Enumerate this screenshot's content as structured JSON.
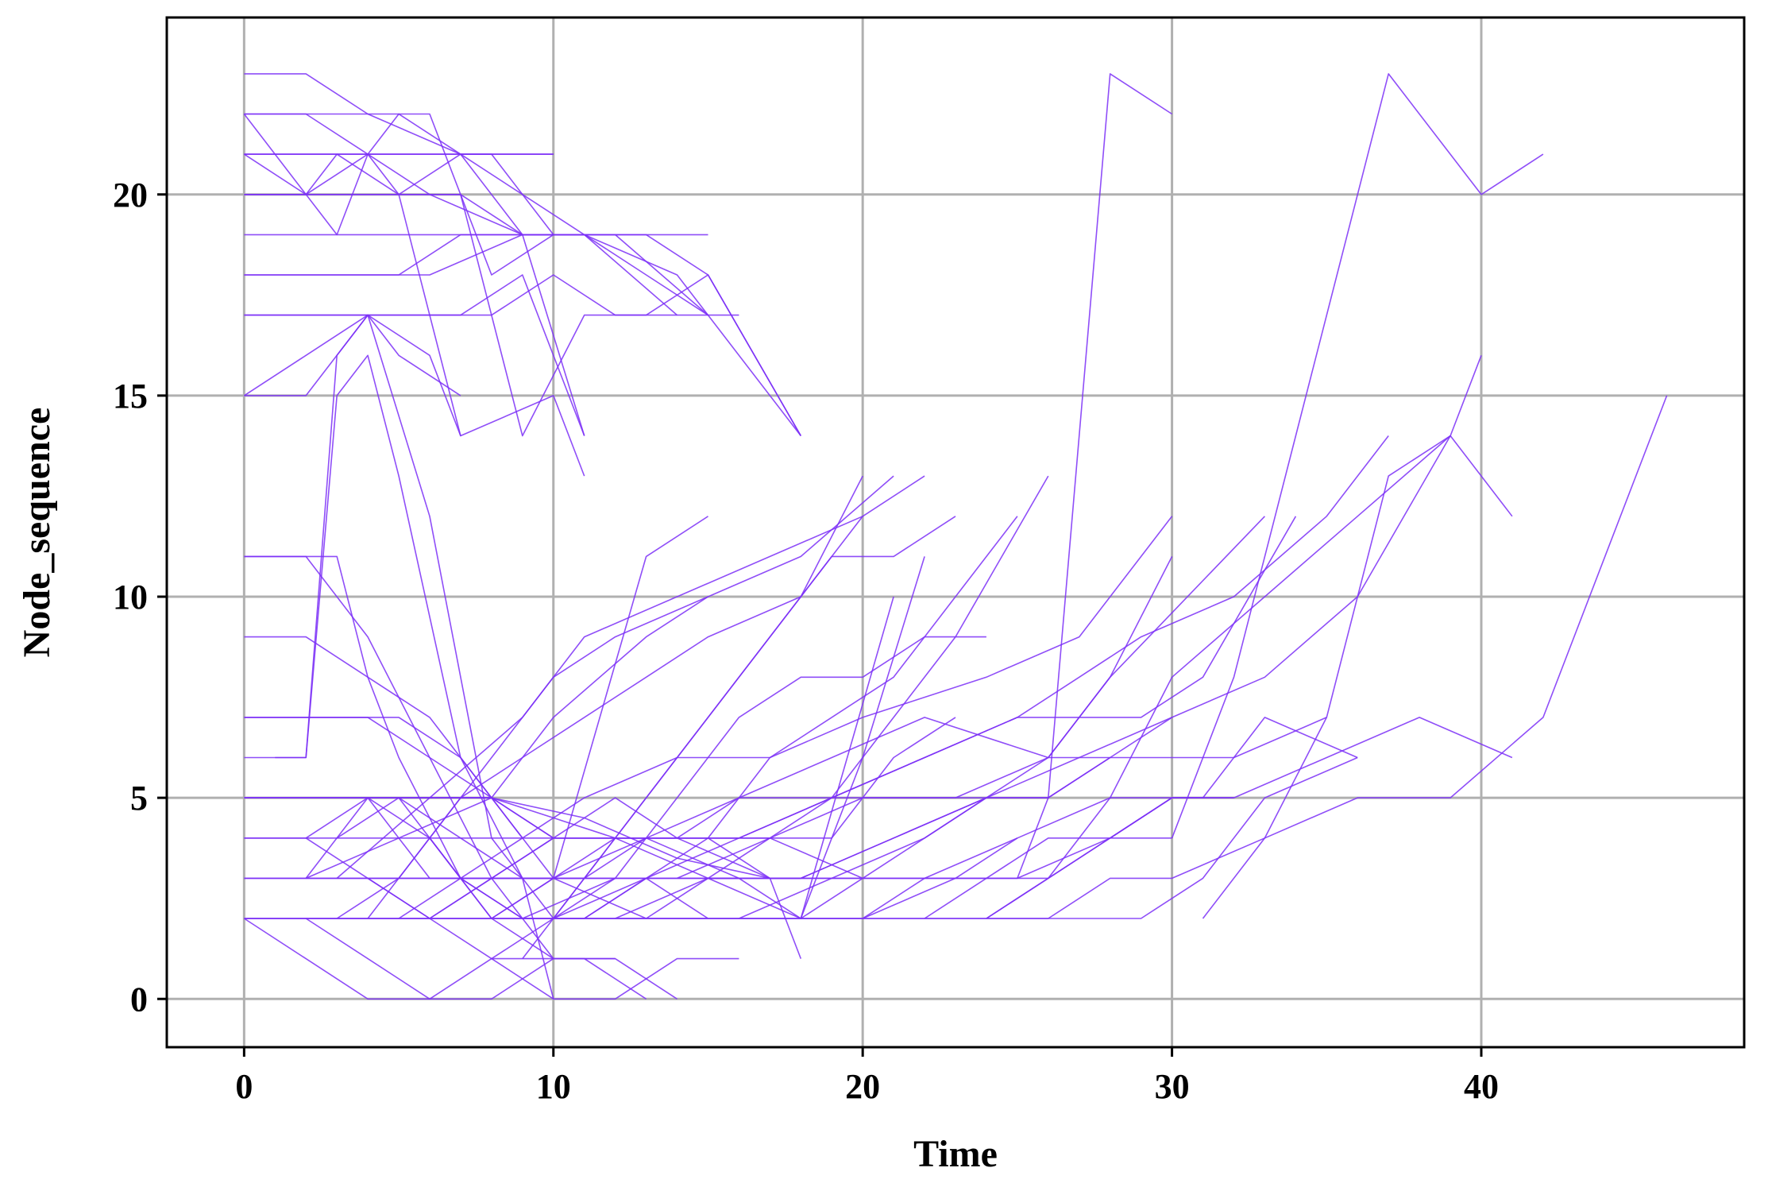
{
  "chart_data": {
    "type": "line",
    "title": "",
    "xlabel": "Time",
    "ylabel": "Node_sequence",
    "xlim": [
      -2.5,
      48.5
    ],
    "ylim": [
      -1.2,
      24.4
    ],
    "xticks": [
      0,
      10,
      20,
      30,
      40
    ],
    "yticks": [
      0,
      5,
      10,
      15,
      20
    ],
    "grid": true,
    "legend": "none",
    "line_color": "#7b2ff7",
    "series": [
      {
        "x": [
          0,
          2,
          4,
          6,
          9,
          11,
          14
        ],
        "y": [
          20,
          20,
          21,
          20,
          19,
          19,
          17
        ]
      },
      {
        "x": [
          0,
          3,
          5,
          8,
          10,
          12,
          15
        ],
        "y": [
          21,
          21,
          21,
          21,
          19,
          19,
          17
        ]
      },
      {
        "x": [
          0,
          2,
          5,
          7,
          9,
          11
        ],
        "y": [
          20,
          20,
          20,
          20,
          19,
          14
        ]
      },
      {
        "x": [
          0,
          2,
          4,
          6,
          8,
          10
        ],
        "y": [
          21,
          21,
          21,
          21,
          21,
          21
        ]
      },
      {
        "x": [
          0,
          2,
          6,
          8,
          10
        ],
        "y": [
          19,
          19,
          19,
          19,
          19
        ]
      },
      {
        "x": [
          0,
          3,
          6,
          9,
          10
        ],
        "y": [
          18,
          18,
          18,
          19,
          19
        ]
      },
      {
        "x": [
          0,
          3,
          5,
          7,
          9,
          10
        ],
        "y": [
          20,
          20,
          20,
          21,
          21,
          21
        ]
      },
      {
        "x": [
          0,
          2,
          4,
          7,
          9,
          11
        ],
        "y": [
          17,
          17,
          17,
          17,
          18,
          14
        ]
      },
      {
        "x": [
          0,
          2,
          5,
          7,
          9,
          11,
          13,
          15
        ],
        "y": [
          18,
          18,
          18,
          19,
          19,
          19,
          18,
          17
        ]
      },
      {
        "x": [
          0,
          2,
          5,
          8,
          10,
          12,
          14,
          16
        ],
        "y": [
          17,
          17,
          17,
          17,
          18,
          17,
          17,
          17
        ]
      },
      {
        "x": [
          0,
          2,
          4,
          5,
          7,
          11,
          14,
          18
        ],
        "y": [
          22,
          22,
          21,
          22,
          21,
          19,
          18,
          14
        ]
      },
      {
        "x": [
          0,
          2,
          4,
          7,
          9,
          11,
          13,
          15,
          18
        ],
        "y": [
          23,
          23,
          22,
          21,
          19,
          19,
          19,
          18,
          14
        ]
      },
      {
        "x": [
          0,
          2,
          4,
          6,
          7,
          8,
          10,
          12,
          15
        ],
        "y": [
          22,
          22,
          22,
          22,
          20,
          18,
          19,
          19,
          19
        ]
      },
      {
        "x": [
          0,
          2,
          3,
          5,
          7,
          9,
          11,
          13,
          15,
          18
        ],
        "y": [
          21,
          20,
          21,
          20,
          20,
          14,
          17,
          17,
          18,
          14
        ]
      },
      {
        "x": [
          0,
          2,
          4,
          5,
          7
        ],
        "y": [
          15,
          15,
          17,
          16,
          15
        ]
      },
      {
        "x": [
          0,
          2,
          4,
          6,
          7
        ],
        "y": [
          15,
          16,
          17,
          16,
          14
        ]
      },
      {
        "x": [
          0,
          1,
          3,
          4,
          5,
          7,
          10,
          11
        ],
        "y": [
          22,
          21,
          19,
          21,
          20,
          14,
          15,
          13
        ]
      },
      {
        "x": [
          1,
          2,
          3,
          4,
          6,
          8,
          10
        ],
        "y": [
          6,
          6,
          16,
          17,
          12,
          4,
          2
        ]
      },
      {
        "x": [
          0,
          2,
          3,
          4,
          5,
          7,
          9,
          10
        ],
        "y": [
          6,
          6,
          15,
          16,
          13,
          6,
          3,
          0
        ]
      },
      {
        "x": [
          0,
          3,
          4,
          5,
          7,
          9,
          12
        ],
        "y": [
          11,
          11,
          8,
          6,
          3,
          2,
          3
        ]
      },
      {
        "x": [
          0,
          2,
          4,
          6,
          8,
          10
        ],
        "y": [
          11,
          11,
          9,
          6,
          3,
          1
        ]
      },
      {
        "x": [
          0,
          2,
          4,
          6,
          8,
          10
        ],
        "y": [
          9,
          9,
          8,
          7,
          5,
          3
        ]
      },
      {
        "x": [
          0,
          2,
          4,
          6,
          8,
          10
        ],
        "y": [
          7,
          7,
          7,
          6,
          5,
          4
        ]
      },
      {
        "x": [
          0,
          2,
          5,
          7,
          9
        ],
        "y": [
          7,
          7,
          7,
          6,
          4
        ]
      },
      {
        "x": [
          0,
          3,
          6,
          8,
          10,
          13,
          16,
          18,
          21
        ],
        "y": [
          5,
          5,
          5,
          5,
          4,
          4,
          3,
          2,
          10
        ]
      },
      {
        "x": [
          0,
          3,
          6,
          8,
          10,
          12,
          15,
          18,
          20,
          22
        ],
        "y": [
          5,
          5,
          5,
          5,
          4.5,
          4,
          3,
          2,
          6,
          11
        ]
      },
      {
        "x": [
          0,
          2,
          5,
          8,
          11,
          14,
          17,
          20,
          22,
          25
        ],
        "y": [
          5,
          5,
          5,
          5,
          4.5,
          3.5,
          3,
          3,
          3,
          4
        ]
      },
      {
        "x": [
          0,
          3,
          5,
          8,
          11,
          14,
          17,
          20
        ],
        "y": [
          4,
          4,
          4,
          4,
          4,
          4,
          4,
          3
        ]
      },
      {
        "x": [
          0,
          2,
          4,
          7,
          10,
          13,
          16
        ],
        "y": [
          3,
          3,
          3,
          3,
          3,
          3,
          3
        ]
      },
      {
        "x": [
          0,
          5,
          10,
          15,
          20,
          22,
          25,
          28,
          30
        ],
        "y": [
          3,
          3,
          3,
          3,
          3,
          3,
          3,
          4,
          5
        ]
      },
      {
        "x": [
          0,
          5,
          10,
          15,
          20,
          25,
          29,
          31,
          33,
          36
        ],
        "y": [
          2,
          2,
          2,
          2,
          2,
          2,
          2,
          3,
          5,
          6
        ]
      },
      {
        "x": [
          0,
          5,
          10,
          15,
          20,
          23,
          25,
          28,
          31,
          33,
          36
        ],
        "y": [
          2,
          2,
          2,
          2,
          2,
          3,
          4,
          5,
          5,
          7,
          6
        ]
      },
      {
        "x": [
          0,
          5,
          10,
          15,
          20,
          24,
          26,
          28,
          30,
          33,
          36,
          39,
          42,
          46
        ],
        "y": [
          2,
          2,
          2,
          2,
          2,
          2,
          2,
          3,
          3,
          4,
          5,
          5,
          7,
          15
        ]
      },
      {
        "x": [
          2,
          4,
          6,
          8,
          10,
          13,
          15
        ],
        "y": [
          3,
          5,
          4,
          2,
          3,
          11,
          12
        ]
      },
      {
        "x": [
          2,
          5,
          8,
          10,
          13,
          15
        ],
        "y": [
          3,
          4,
          5,
          7,
          9,
          10
        ]
      },
      {
        "x": [
          3,
          5,
          7,
          9,
          11,
          13,
          15,
          18,
          20
        ],
        "y": [
          2,
          3,
          5,
          6,
          7,
          8,
          9,
          10,
          13
        ]
      },
      {
        "x": [
          4,
          6,
          8,
          10,
          12,
          15,
          18,
          21
        ],
        "y": [
          2,
          4,
          6,
          8,
          9,
          10,
          11,
          13
        ]
      },
      {
        "x": [
          3,
          6,
          9,
          11,
          14,
          17,
          20,
          22
        ],
        "y": [
          3,
          5,
          7,
          9,
          10,
          11,
          12,
          13
        ]
      },
      {
        "x": [
          5,
          7,
          9,
          11,
          14,
          17,
          20,
          24,
          27,
          30
        ],
        "y": [
          2,
          3,
          4,
          5,
          6,
          6,
          7,
          8,
          9,
          12
        ]
      },
      {
        "x": [
          6,
          8,
          10,
          13,
          16,
          19,
          22,
          26,
          28,
          33
        ],
        "y": [
          2,
          3,
          4,
          4,
          5,
          6,
          7,
          6,
          8,
          12
        ]
      },
      {
        "x": [
          8,
          10,
          13,
          16,
          19,
          22,
          25,
          27,
          29,
          31,
          34
        ],
        "y": [
          2,
          3,
          4,
          4,
          5,
          6,
          7,
          7,
          7,
          8,
          12
        ]
      },
      {
        "x": [
          10,
          13,
          16,
          19,
          22,
          25,
          27,
          29,
          32,
          35,
          37
        ],
        "y": [
          2,
          3,
          4,
          5,
          6,
          7,
          8,
          9,
          10,
          12,
          14
        ]
      },
      {
        "x": [
          12,
          15,
          18,
          21,
          24,
          27,
          30,
          33,
          36,
          39,
          40
        ],
        "y": [
          2,
          3,
          3,
          4,
          5,
          6,
          7,
          8,
          10,
          14,
          16
        ]
      },
      {
        "x": [
          14,
          17,
          20,
          23,
          26,
          28,
          30
        ],
        "y": [
          3,
          4,
          5,
          5,
          6,
          8,
          11
        ]
      },
      {
        "x": [
          15,
          18,
          21,
          24,
          26,
          28,
          30
        ],
        "y": [
          3,
          3,
          4,
          5,
          6,
          6,
          7
        ]
      },
      {
        "x": [
          16,
          19,
          22,
          24,
          26,
          28
        ],
        "y": [
          2,
          3,
          4,
          5,
          5,
          6
        ]
      },
      {
        "x": [
          18,
          20,
          22,
          24,
          26,
          28,
          30,
          32,
          35
        ],
        "y": [
          2,
          3,
          4,
          5,
          5,
          6,
          6,
          6,
          7
        ]
      },
      {
        "x": [
          20,
          22,
          24,
          26,
          28,
          30,
          32
        ],
        "y": [
          2,
          3,
          3,
          4,
          4,
          5,
          5
        ]
      },
      {
        "x": [
          22,
          24,
          26,
          28,
          30,
          32,
          35,
          38,
          41
        ],
        "y": [
          2,
          3,
          3,
          4,
          5,
          5,
          6,
          7,
          6
        ]
      },
      {
        "x": [
          24,
          26,
          28,
          30
        ],
        "y": [
          2,
          3,
          4,
          4
        ]
      },
      {
        "x": [
          8,
          10,
          12,
          14,
          16,
          18,
          20
        ],
        "y": [
          1,
          2,
          4,
          6,
          8,
          10,
          12
        ]
      },
      {
        "x": [
          9,
          11,
          13,
          15,
          17,
          19,
          21,
          23
        ],
        "y": [
          1,
          3,
          5,
          7,
          9,
          11,
          11,
          12
        ]
      },
      {
        "x": [
          10,
          12,
          14,
          16,
          18,
          20,
          22,
          24
        ],
        "y": [
          2,
          3,
          5,
          7,
          8,
          8,
          9,
          9
        ]
      },
      {
        "x": [
          11,
          13,
          15,
          17,
          19,
          21,
          23,
          25
        ],
        "y": [
          2,
          3,
          4,
          6,
          7,
          8,
          10,
          12
        ]
      },
      {
        "x": [
          13,
          15,
          17,
          19,
          21,
          23,
          26
        ],
        "y": [
          2,
          3,
          4,
          5,
          7,
          9,
          13
        ]
      },
      {
        "x": [
          24,
          26,
          28,
          30,
          33,
          36,
          39,
          41
        ],
        "y": [
          2,
          3,
          5,
          8,
          10,
          12,
          14,
          12
        ]
      },
      {
        "x": [
          25,
          26,
          28,
          30
        ],
        "y": [
          3,
          5,
          23,
          22
        ]
      },
      {
        "x": [
          30,
          32,
          34,
          37,
          40,
          42
        ],
        "y": [
          4,
          8,
          14,
          23,
          20,
          21
        ]
      },
      {
        "x": [
          31,
          33,
          35,
          37,
          39
        ],
        "y": [
          2,
          4,
          7,
          13,
          14
        ]
      },
      {
        "x": [
          0,
          2,
          4,
          6,
          8,
          10,
          12
        ],
        "y": [
          2,
          1,
          0,
          0,
          0,
          1,
          1
        ]
      },
      {
        "x": [
          2,
          4,
          6,
          8,
          10,
          12,
          14,
          16
        ],
        "y": [
          2,
          1,
          0,
          1,
          0,
          0,
          1,
          1
        ]
      },
      {
        "x": [
          4,
          6,
          8,
          10,
          12,
          14
        ],
        "y": [
          3,
          2,
          1,
          1,
          1,
          0
        ]
      },
      {
        "x": [
          6,
          8,
          10,
          11,
          13
        ],
        "y": [
          4,
          2,
          1,
          1,
          0
        ]
      },
      {
        "x": [
          5,
          7,
          9,
          11,
          13,
          15
        ],
        "y": [
          5,
          3,
          2,
          2,
          3,
          2
        ]
      },
      {
        "x": [
          3,
          5,
          7,
          9,
          11,
          13,
          15,
          17,
          18
        ],
        "y": [
          4,
          5,
          4,
          3,
          3,
          4,
          4,
          3,
          1
        ]
      },
      {
        "x": [
          0,
          2,
          4,
          6,
          8,
          10,
          13
        ],
        "y": [
          4,
          4,
          5,
          3,
          3,
          3,
          2
        ]
      },
      {
        "x": [
          2,
          4,
          6,
          8,
          10,
          12,
          14,
          17
        ],
        "y": [
          4,
          3,
          2,
          3,
          4,
          5,
          4,
          3
        ]
      },
      {
        "x": [
          10,
          12,
          14,
          16,
          18,
          20,
          22,
          24
        ],
        "y": [
          3,
          4,
          4,
          5,
          5,
          5,
          5,
          5
        ]
      },
      {
        "x": [
          10,
          13,
          16,
          19,
          21,
          23
        ],
        "y": [
          4,
          4,
          4,
          4,
          6,
          7
        ]
      }
    ]
  }
}
